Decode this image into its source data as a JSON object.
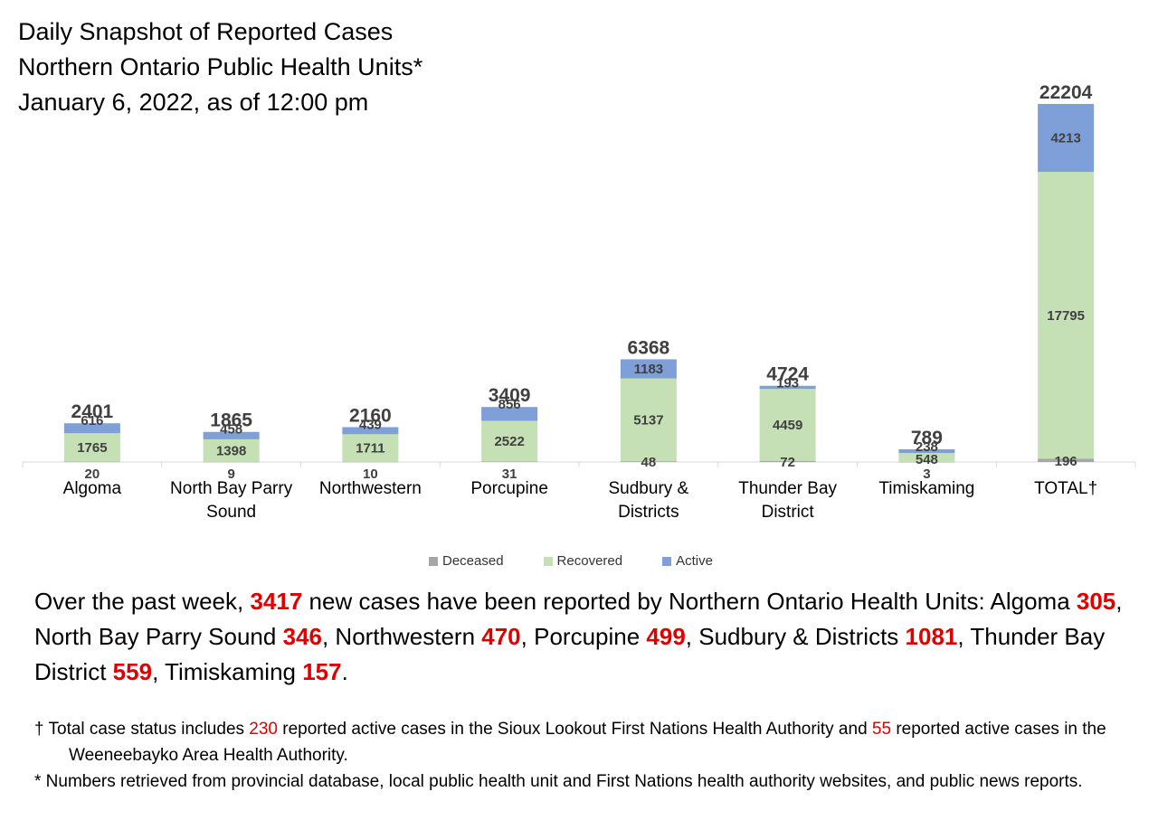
{
  "title": {
    "line1": "Daily Snapshot of Reported Cases",
    "line2": "Northern Ontario Public Health Units*",
    "line3": "January 6, 2022, as of 12:00 pm"
  },
  "chart_data": {
    "type": "bar",
    "stacked": true,
    "categories": [
      "Algoma",
      "North Bay Parry Sound",
      "Northwestern",
      "Porcupine",
      "Sudbury & Districts",
      "Thunder Bay District",
      "Timiskaming",
      "TOTAL†"
    ],
    "category_lines": [
      [
        "Algoma"
      ],
      [
        "North Bay Parry",
        "Sound"
      ],
      [
        "Northwestern"
      ],
      [
        "Porcupine"
      ],
      [
        "Sudbury &",
        "Districts"
      ],
      [
        "Thunder Bay",
        "District"
      ],
      [
        "Timiskaming"
      ],
      [
        "TOTAL†"
      ]
    ],
    "series": [
      {
        "name": "Deceased",
        "color": "#a6a6a6",
        "values": [
          20,
          9,
          10,
          31,
          48,
          72,
          3,
          196
        ]
      },
      {
        "name": "Recovered",
        "color": "#c5e0b4",
        "values": [
          1765,
          1398,
          1711,
          2522,
          5137,
          4459,
          548,
          17795
        ]
      },
      {
        "name": "Active",
        "color": "#7f9fd8",
        "values": [
          616,
          458,
          439,
          856,
          1183,
          193,
          238,
          4213
        ]
      }
    ],
    "totals": [
      2401,
      1865,
      2160,
      3409,
      6368,
      4724,
      789,
      22204
    ],
    "legend_position": "bottom",
    "grid": false
  },
  "summary": {
    "p1": "Over the past week, ",
    "total_new": "3417",
    "p2": " new cases have been reported by Northern Ontario Health Units: Algoma ",
    "algoma": "305",
    "p3": ", North Bay Parry Sound ",
    "nbps": "346",
    "p4": ", Northwestern ",
    "northwestern": "470",
    "p5": ", Porcupine ",
    "porcupine": "499",
    "p6": ", Sudbury & Districts ",
    "sudbury": "1081",
    "p7": ", Thunder Bay District ",
    "thunder_bay": "559",
    "p8": ", Timiskaming ",
    "timiskaming": "157",
    "p9": "."
  },
  "footnotes": {
    "f1_a": "† Total case status includes ",
    "f1_n1": "230",
    "f1_b": " reported active cases in the Sioux Lookout First Nations Health Authority and ",
    "f1_n2": "55",
    "f1_c": " reported active cases in the Weeneebayko Area Health Authority.",
    "f2": "* Numbers retrieved from provincial database, local public health unit and First Nations health authority websites, and public news reports."
  }
}
